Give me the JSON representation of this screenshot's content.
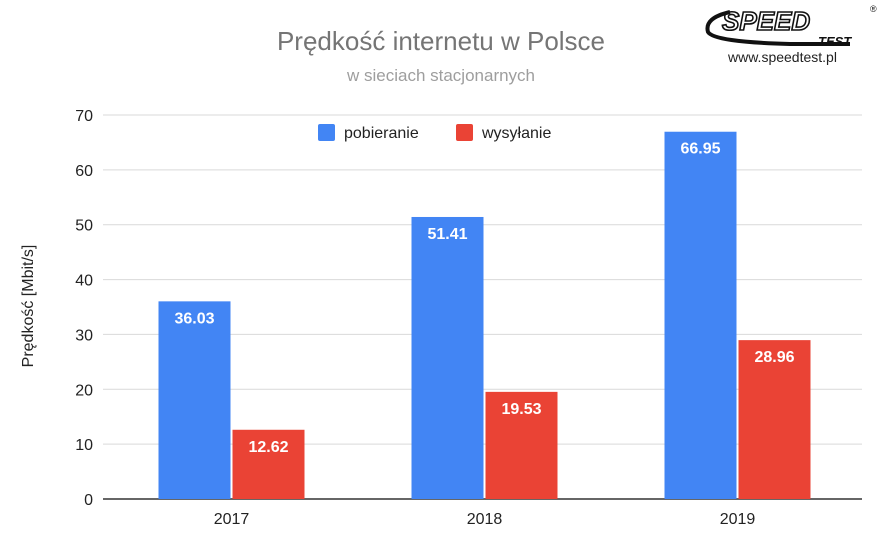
{
  "logo": {
    "text": "SPEED TEST",
    "registered": "®",
    "url": "www.speedtest.pl"
  },
  "chart_data": {
    "type": "bar",
    "title": "Prędkość internetu w Polsce",
    "subtitle": "w sieciach stacjonarnych",
    "xlabel": "",
    "ylabel": "Prędkość [Mbit/s]",
    "categories": [
      "2017",
      "2018",
      "2019"
    ],
    "series": [
      {
        "name": "pobieranie",
        "color": "#4285f4",
        "values": [
          36.03,
          51.41,
          66.95
        ],
        "labels": [
          "36.03",
          "51.41",
          "66.95"
        ]
      },
      {
        "name": "wysyłanie",
        "color": "#ea4335",
        "values": [
          12.62,
          19.53,
          28.96
        ],
        "labels": [
          "12.62",
          "19.53",
          "28.96"
        ]
      }
    ],
    "ylim": [
      0,
      70
    ],
    "yticks": [
      "0",
      "10",
      "20",
      "30",
      "40",
      "50",
      "60",
      "70"
    ],
    "grid": true,
    "legend": "top-center"
  }
}
